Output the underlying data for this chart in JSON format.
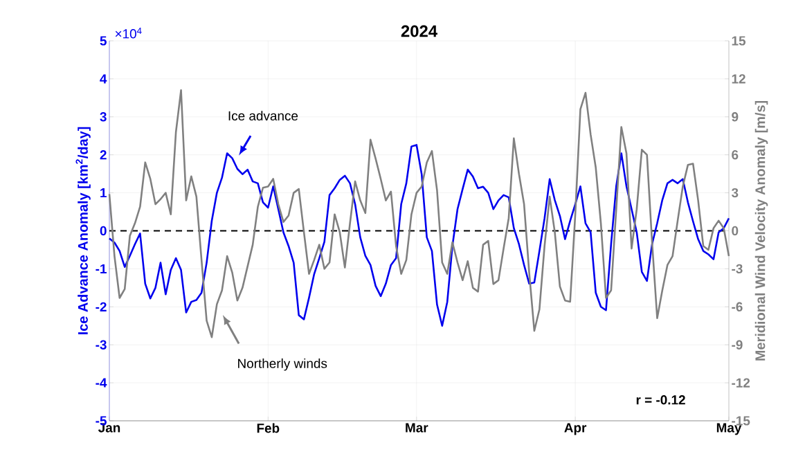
{
  "chart_data": {
    "type": "line",
    "title": "2024",
    "ylabel": "Ice Advance Anomaly [km$^{2}$/day]",
    "y2label": "Meridional Wind Velocity Anomaly [m/s]",
    "x": [
      "2024-01-01",
      "2024-01-02",
      "2024-01-03",
      "2024-01-04",
      "2024-01-05",
      "2024-01-06",
      "2024-01-07",
      "2024-01-08",
      "2024-01-09",
      "2024-01-10",
      "2024-01-11",
      "2024-01-12",
      "2024-01-13",
      "2024-01-14",
      "2024-01-15",
      "2024-01-16",
      "2024-01-17",
      "2024-01-18",
      "2024-01-19",
      "2024-01-20",
      "2024-01-21",
      "2024-01-22",
      "2024-01-23",
      "2024-01-24",
      "2024-01-25",
      "2024-01-26",
      "2024-01-27",
      "2024-01-28",
      "2024-01-29",
      "2024-01-30",
      "2024-01-31",
      "2024-02-01",
      "2024-02-02",
      "2024-02-03",
      "2024-02-04",
      "2024-02-05",
      "2024-02-06",
      "2024-02-07",
      "2024-02-08",
      "2024-02-09",
      "2024-02-10",
      "2024-02-11",
      "2024-02-12",
      "2024-02-13",
      "2024-02-14",
      "2024-02-15",
      "2024-02-16",
      "2024-02-17",
      "2024-02-18",
      "2024-02-19",
      "2024-02-20",
      "2024-02-21",
      "2024-02-22",
      "2024-02-23",
      "2024-02-24",
      "2024-02-25",
      "2024-02-26",
      "2024-02-27",
      "2024-02-28",
      "2024-02-29",
      "2024-03-01",
      "2024-03-02",
      "2024-03-03",
      "2024-03-04",
      "2024-03-05",
      "2024-03-06",
      "2024-03-07",
      "2024-03-08",
      "2024-03-09",
      "2024-03-10",
      "2024-03-11",
      "2024-03-12",
      "2024-03-13",
      "2024-03-14",
      "2024-03-15",
      "2024-03-16",
      "2024-03-17",
      "2024-03-18",
      "2024-03-19",
      "2024-03-20",
      "2024-03-21",
      "2024-03-22",
      "2024-03-23",
      "2024-03-24",
      "2024-03-25",
      "2024-03-26",
      "2024-03-27",
      "2024-03-28",
      "2024-03-29",
      "2024-03-30",
      "2024-03-31",
      "2024-04-01",
      "2024-04-02",
      "2024-04-03",
      "2024-04-04",
      "2024-04-05",
      "2024-04-06",
      "2024-04-07",
      "2024-04-08",
      "2024-04-09",
      "2024-04-10",
      "2024-04-11",
      "2024-04-12",
      "2024-04-13",
      "2024-04-14",
      "2024-04-15",
      "2024-04-16",
      "2024-04-17",
      "2024-04-18",
      "2024-04-19",
      "2024-04-20",
      "2024-04-21",
      "2024-04-22",
      "2024-04-23",
      "2024-04-24",
      "2024-04-25",
      "2024-04-26",
      "2024-04-27",
      "2024-04-28",
      "2024-04-29",
      "2024-04-30",
      "2024-05-01"
    ],
    "series": [
      {
        "color": "#0000ee",
        "values": [
          -0.2,
          -0.31,
          -0.53,
          -0.95,
          -0.66,
          -0.35,
          -0.07,
          -1.39,
          -1.78,
          -1.5,
          -0.84,
          -1.67,
          -1.03,
          -0.72,
          -1.03,
          -2.15,
          -1.87,
          -1.82,
          -1.63,
          -0.84,
          0.26,
          1.0,
          1.4,
          2.04,
          1.91,
          1.63,
          1.49,
          1.61,
          1.3,
          1.25,
          0.75,
          0.61,
          1.17,
          0.57,
          -0.04,
          -0.4,
          -0.84,
          -2.22,
          -2.33,
          -1.76,
          -1.14,
          -0.72,
          -0.29,
          0.94,
          1.12,
          1.34,
          1.45,
          1.25,
          0.7,
          -0.17,
          -0.66,
          -0.9,
          -1.45,
          -1.72,
          -1.39,
          -0.9,
          -0.72,
          0.7,
          1.25,
          2.22,
          2.26,
          1.49,
          -0.17,
          -0.53,
          -1.94,
          -2.5,
          -1.87,
          -0.4,
          0.57,
          1.1,
          1.61,
          1.43,
          1.12,
          1.16,
          1.0,
          0.57,
          0.8,
          0.94,
          0.88,
          0.07,
          -0.35,
          -0.9,
          -1.39,
          -1.36,
          -0.53,
          0.33,
          1.36,
          0.81,
          0.39,
          -0.22,
          0.26,
          0.7,
          1.17,
          0.2,
          -0.04,
          -1.63,
          -2.0,
          -2.09,
          -0.35,
          1.17,
          2.04,
          1.17,
          0.57,
          -0.04,
          -1.08,
          -1.32,
          -0.35,
          0.2,
          0.81,
          1.25,
          1.34,
          1.25,
          1.36,
          0.75,
          0.25,
          -0.22,
          -0.53,
          -0.62,
          -0.75,
          -0.04,
          0.07,
          0.33
        ]
      },
      {
        "color": "#808080",
        "axis": "y2",
        "values": [
          2.9,
          -2.0,
          -5.3,
          -4.6,
          -0.4,
          0.6,
          1.9,
          5.4,
          4.1,
          2.1,
          2.5,
          3.0,
          1.3,
          7.8,
          11.1,
          2.4,
          4.3,
          2.7,
          -2.3,
          -7.1,
          -8.4,
          -5.8,
          -4.7,
          -2.0,
          -3.3,
          -5.5,
          -4.5,
          -2.8,
          -1.1,
          1.9,
          3.4,
          3.5,
          4.1,
          2.1,
          0.7,
          1.2,
          3.0,
          3.3,
          -0.1,
          -3.4,
          -2.3,
          -1.1,
          -3.0,
          -2.5,
          1.3,
          -0.1,
          -2.9,
          0.6,
          3.9,
          2.4,
          1.4,
          7.2,
          5.7,
          4.1,
          2.4,
          3.1,
          -1.2,
          -3.4,
          -2.3,
          1.3,
          3.0,
          3.5,
          5.4,
          6.3,
          3.2,
          -2.5,
          -3.4,
          -0.9,
          -2.5,
          -3.9,
          -2.4,
          -4.5,
          -4.8,
          -1.1,
          -0.8,
          -4.2,
          -3.9,
          -1.4,
          1.0,
          7.3,
          4.5,
          2.1,
          -3.3,
          -7.9,
          -6.2,
          -1.2,
          2.7,
          -0.1,
          -4.4,
          -5.5,
          -5.6,
          1.3,
          9.6,
          10.9,
          7.6,
          5.0,
          0.6,
          -5.3,
          -4.7,
          1.7,
          8.2,
          6.1,
          -1.4,
          1.7,
          6.4,
          6.0,
          -0.9,
          -6.9,
          -4.7,
          -2.7,
          -2.0,
          0.8,
          3.5,
          5.2,
          5.3,
          2.4,
          -1.2,
          -1.5,
          0.2,
          0.8,
          0.2,
          -2.0
        ]
      }
    ],
    "xlim": [
      "2024-01-01",
      "2024-05-01"
    ],
    "xticks": [
      {
        "value": "2024-01-01",
        "label": "Jan"
      },
      {
        "value": "2024-02-01",
        "label": "Feb"
      },
      {
        "value": "2024-03-01",
        "label": "Mar"
      },
      {
        "value": "2024-04-01",
        "label": "Apr"
      },
      {
        "value": "2024-05-01",
        "label": "May"
      }
    ],
    "ylim": [
      -5,
      5
    ],
    "yticks": [
      -5,
      -4,
      -3,
      -2,
      -1,
      0,
      1,
      2,
      3,
      4,
      5
    ],
    "y2lim": [
      -15,
      15
    ],
    "y2ticks": [
      -15,
      -12,
      -9,
      -6,
      -3,
      0,
      3,
      6,
      9,
      12,
      15
    ],
    "ref_lines": [
      {
        "axis": "y",
        "value": 0,
        "color": "#000000",
        "line_style": "dashed"
      }
    ],
    "grid": true,
    "line_style": "solid",
    "annotations": [
      "Ice advance",
      "Northerly winds",
      "×10$^{4}$",
      "r = -0.12"
    ]
  }
}
